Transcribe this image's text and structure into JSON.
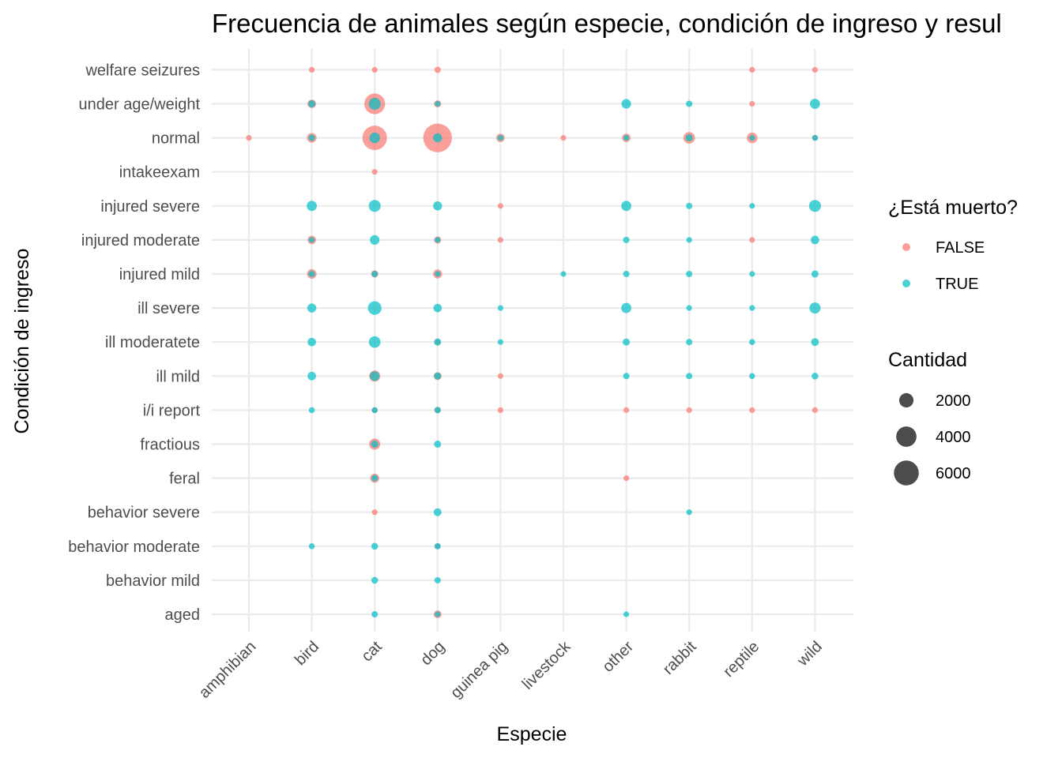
{
  "chart_data": {
    "type": "scatter",
    "title": "Frecuencia de animales según especie, condición de ingreso y resul",
    "xlabel": "Especie",
    "ylabel": "Condición de ingreso",
    "categories_x": [
      "amphibian",
      "bird",
      "cat",
      "dog",
      "guinea pig",
      "livestock",
      "other",
      "rabbit",
      "reptile",
      "wild"
    ],
    "categories_y": [
      "aged",
      "behavior  mild",
      "behavior  moderate",
      "behavior  severe",
      "feral",
      "fractious",
      "i/i report",
      "ill mild",
      "ill moderatete",
      "ill severe",
      "injured  mild",
      "injured  moderate",
      "injured  severe",
      "intakeexam",
      "normal",
      "under age/weight",
      "welfare seizures"
    ],
    "grid": true,
    "legend_color": {
      "title": "¿Está muerto?",
      "entries": [
        {
          "label": "FALSE",
          "color": "#F8766D"
        },
        {
          "label": "TRUE",
          "color": "#00BFC4"
        }
      ],
      "placement": "right"
    },
    "legend_size": {
      "title": "Cantidad",
      "entries": [
        {
          "label": "2000",
          "value": 2000
        },
        {
          "label": "4000",
          "value": 4000
        },
        {
          "label": "6000",
          "value": 6000
        }
      ],
      "placement": "right"
    },
    "series": [
      {
        "name": "FALSE",
        "color": "#F8766D",
        "points": [
          [
            "bird",
            "welfare seizures",
            150
          ],
          [
            "cat",
            "welfare seizures",
            300
          ],
          [
            "dog",
            "welfare seizures",
            400
          ],
          [
            "reptile",
            "welfare seizures",
            150
          ],
          [
            "wild",
            "welfare seizures",
            150
          ],
          [
            "bird",
            "under age/weight",
            700
          ],
          [
            "cat",
            "under age/weight",
            4200
          ],
          [
            "dog",
            "under age/weight",
            500
          ],
          [
            "reptile",
            "under age/weight",
            150
          ],
          [
            "amphibian",
            "normal",
            150
          ],
          [
            "bird",
            "normal",
            900
          ],
          [
            "cat",
            "normal",
            5800
          ],
          [
            "dog",
            "normal",
            8000
          ],
          [
            "guinea pig",
            "normal",
            700
          ],
          [
            "livestock",
            "normal",
            200
          ],
          [
            "other",
            "normal",
            700
          ],
          [
            "rabbit",
            "normal",
            1300
          ],
          [
            "reptile",
            "normal",
            1100
          ],
          [
            "wild",
            "normal",
            200
          ],
          [
            "cat",
            "intakeexam",
            150
          ],
          [
            "guinea pig",
            "injured  severe",
            150
          ],
          [
            "bird",
            "injured  moderate",
            700
          ],
          [
            "dog",
            "injured  moderate",
            500
          ],
          [
            "guinea pig",
            "injured  moderate",
            150
          ],
          [
            "reptile",
            "injured  moderate",
            150
          ],
          [
            "bird",
            "injured  mild",
            900
          ],
          [
            "cat",
            "injured  mild",
            500
          ],
          [
            "dog",
            "injured  mild",
            800
          ],
          [
            "dog",
            "ill moderatete",
            300
          ],
          [
            "cat",
            "ill mild",
            1200
          ],
          [
            "dog",
            "ill mild",
            600
          ],
          [
            "guinea pig",
            "ill mild",
            150
          ],
          [
            "cat",
            "i/i report",
            300
          ],
          [
            "dog",
            "i/i report",
            400
          ],
          [
            "guinea pig",
            "i/i report",
            150
          ],
          [
            "other",
            "i/i report",
            200
          ],
          [
            "rabbit",
            "i/i report",
            250
          ],
          [
            "reptile",
            "i/i report",
            200
          ],
          [
            "wild",
            "i/i report",
            150
          ],
          [
            "cat",
            "fractious",
            1200
          ],
          [
            "cat",
            "feral",
            800
          ],
          [
            "other",
            "feral",
            150
          ],
          [
            "cat",
            "behavior  severe",
            200
          ],
          [
            "dog",
            "behavior  moderate",
            300
          ],
          [
            "dog",
            "aged",
            600
          ]
        ]
      },
      {
        "name": "TRUE",
        "color": "#00BFC4",
        "points": [
          [
            "bird",
            "under age/weight",
            500
          ],
          [
            "cat",
            "under age/weight",
            1400
          ],
          [
            "dog",
            "under age/weight",
            300
          ],
          [
            "other",
            "under age/weight",
            900
          ],
          [
            "rabbit",
            "under age/weight",
            400
          ],
          [
            "wild",
            "under age/weight",
            1000
          ],
          [
            "bird",
            "normal",
            400
          ],
          [
            "cat",
            "normal",
            1100
          ],
          [
            "dog",
            "normal",
            800
          ],
          [
            "guinea pig",
            "normal",
            300
          ],
          [
            "other",
            "normal",
            300
          ],
          [
            "rabbit",
            "normal",
            500
          ],
          [
            "reptile",
            "normal",
            300
          ],
          [
            "wild",
            "normal",
            350
          ],
          [
            "bird",
            "injured  severe",
            1000
          ],
          [
            "cat",
            "injured  severe",
            1400
          ],
          [
            "dog",
            "injured  severe",
            800
          ],
          [
            "other",
            "injured  severe",
            1000
          ],
          [
            "rabbit",
            "injured  severe",
            400
          ],
          [
            "reptile",
            "injured  severe",
            300
          ],
          [
            "wild",
            "injured  severe",
            1400
          ],
          [
            "bird",
            "injured  moderate",
            300
          ],
          [
            "cat",
            "injured  moderate",
            900
          ],
          [
            "dog",
            "injured  moderate",
            300
          ],
          [
            "other",
            "injured  moderate",
            400
          ],
          [
            "rabbit",
            "injured  moderate",
            300
          ],
          [
            "wild",
            "injured  moderate",
            700
          ],
          [
            "bird",
            "injured  mild",
            400
          ],
          [
            "cat",
            "injured  mild",
            400
          ],
          [
            "dog",
            "injured  mild",
            300
          ],
          [
            "livestock",
            "injured  mild",
            200
          ],
          [
            "other",
            "injured  mild",
            400
          ],
          [
            "rabbit",
            "injured  mild",
            400
          ],
          [
            "reptile",
            "injured  mild",
            300
          ],
          [
            "wild",
            "injured  mild",
            500
          ],
          [
            "bird",
            "ill severe",
            800
          ],
          [
            "cat",
            "ill severe",
            1800
          ],
          [
            "dog",
            "ill severe",
            700
          ],
          [
            "guinea pig",
            "ill severe",
            250
          ],
          [
            "other",
            "ill severe",
            1000
          ],
          [
            "rabbit",
            "ill severe",
            300
          ],
          [
            "reptile",
            "ill severe",
            300
          ],
          [
            "wild",
            "ill severe",
            1200
          ],
          [
            "bird",
            "ill moderatete",
            700
          ],
          [
            "cat",
            "ill moderatete",
            1300
          ],
          [
            "dog",
            "ill moderatete",
            500
          ],
          [
            "guinea pig",
            "ill moderatete",
            300
          ],
          [
            "other",
            "ill moderatete",
            500
          ],
          [
            "rabbit",
            "ill moderatete",
            400
          ],
          [
            "reptile",
            "ill moderatete",
            350
          ],
          [
            "wild",
            "ill moderatete",
            600
          ],
          [
            "bird",
            "ill mild",
            700
          ],
          [
            "cat",
            "ill mild",
            900
          ],
          [
            "dog",
            "ill mild",
            500
          ],
          [
            "other",
            "ill mild",
            400
          ],
          [
            "rabbit",
            "ill mild",
            400
          ],
          [
            "reptile",
            "ill mild",
            350
          ],
          [
            "wild",
            "ill mild",
            450
          ],
          [
            "bird",
            "i/i report",
            350
          ],
          [
            "cat",
            "i/i report",
            350
          ],
          [
            "dog",
            "i/i report",
            400
          ],
          [
            "cat",
            "fractious",
            500
          ],
          [
            "dog",
            "fractious",
            500
          ],
          [
            "cat",
            "feral",
            400
          ],
          [
            "dog",
            "behavior  severe",
            600
          ],
          [
            "rabbit",
            "behavior  severe",
            250
          ],
          [
            "bird",
            "behavior  moderate",
            350
          ],
          [
            "cat",
            "behavior  moderate",
            450
          ],
          [
            "dog",
            "behavior  moderate",
            400
          ],
          [
            "cat",
            "behavior  mild",
            450
          ],
          [
            "dog",
            "behavior  mild",
            400
          ],
          [
            "cat",
            "aged",
            400
          ],
          [
            "dog",
            "aged",
            300
          ],
          [
            "other",
            "aged",
            300
          ]
        ]
      }
    ]
  }
}
